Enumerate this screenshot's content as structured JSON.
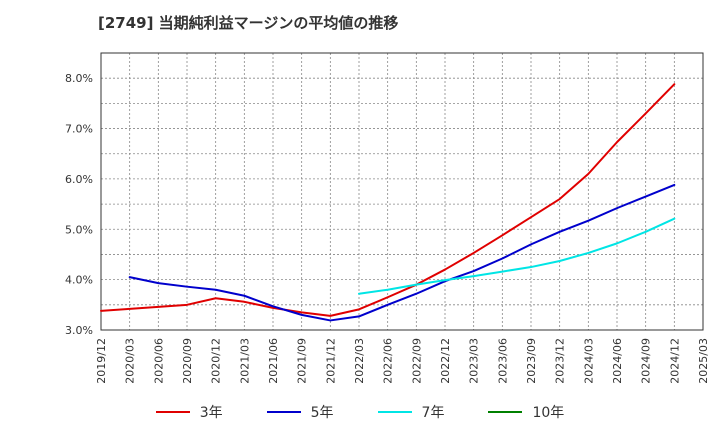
{
  "title": "[2749]  当期純利益マージンの平均値の推移",
  "chart_data": {
    "type": "line",
    "x": [
      "2019/12",
      "2020/03",
      "2020/06",
      "2020/09",
      "2020/12",
      "2021/03",
      "2021/06",
      "2021/09",
      "2021/12",
      "2022/03",
      "2022/06",
      "2022/09",
      "2022/12",
      "2023/03",
      "2023/06",
      "2023/09",
      "2023/12",
      "2024/03",
      "2024/06",
      "2024/09",
      "2024/12",
      "2025/03"
    ],
    "ylim": [
      3.0,
      8.5
    ],
    "yticks": [
      "3.0%",
      "4.0%",
      "5.0%",
      "6.0%",
      "7.0%",
      "8.0%"
    ],
    "grid": true,
    "legend_position": "bottom",
    "series": [
      {
        "name": "3年",
        "color": "#e00000",
        "values": [
          3.38,
          3.42,
          3.46,
          3.5,
          3.63,
          3.56,
          3.44,
          3.35,
          3.28,
          3.41,
          3.65,
          3.9,
          4.2,
          4.53,
          4.88,
          5.24,
          5.6,
          6.1,
          6.73,
          7.3,
          7.88,
          null
        ]
      },
      {
        "name": "5年",
        "color": "#0000cc",
        "values": [
          null,
          4.05,
          3.93,
          3.86,
          3.8,
          3.68,
          3.47,
          3.3,
          3.19,
          3.27,
          3.5,
          3.72,
          3.97,
          4.17,
          4.42,
          4.7,
          4.95,
          5.17,
          5.42,
          5.65,
          5.88,
          null
        ]
      },
      {
        "name": "7年",
        "color": "#00e5e5",
        "values": [
          null,
          null,
          null,
          null,
          null,
          null,
          null,
          null,
          null,
          3.72,
          3.8,
          3.9,
          3.99,
          4.07,
          4.16,
          4.25,
          4.37,
          4.53,
          4.72,
          4.95,
          5.21,
          null
        ]
      },
      {
        "name": "10年",
        "color": "#008000",
        "values": [
          null,
          null,
          null,
          null,
          null,
          null,
          null,
          null,
          null,
          null,
          null,
          null,
          null,
          null,
          null,
          null,
          null,
          null,
          null,
          null,
          null,
          null
        ]
      }
    ]
  }
}
